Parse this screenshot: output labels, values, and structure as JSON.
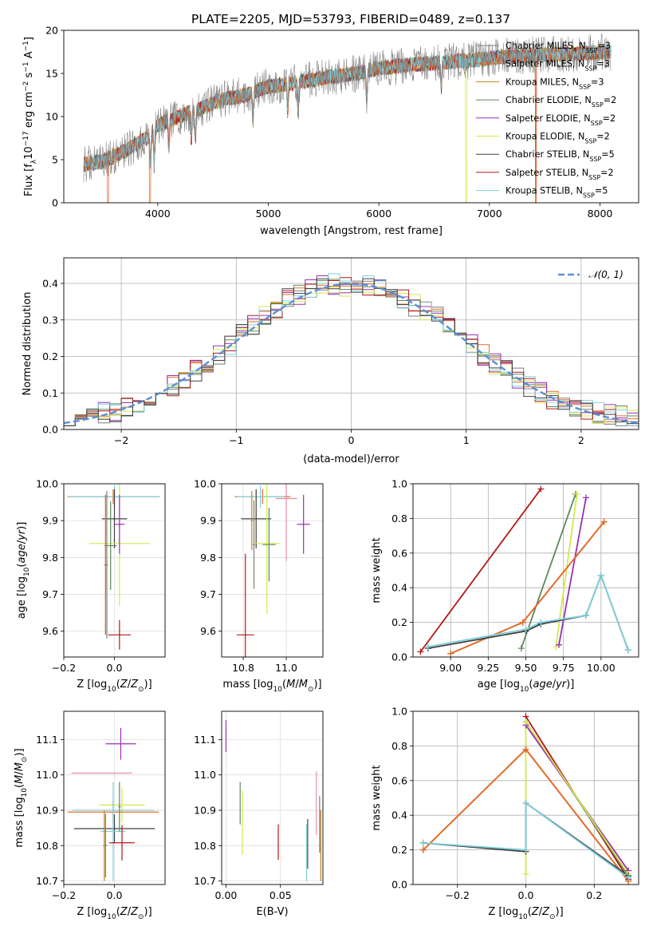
{
  "figure_title": "PLATE=2205, MJD=53793, FIBERID=0489, z=0.137",
  "colors": {
    "Chabrier MILES": "#7f7f7f",
    "Salpeter MILES": "#e86c2a",
    "Kroupa MILES": "#c08020",
    "Chabrier ELODIE": "#5a8a5a",
    "Salpeter ELODIE": "#9a2fb5",
    "Kroupa ELODIE": "#d4e84a",
    "Chabrier STELIB": "#404040",
    "Salpeter STELIB": "#b01818",
    "Kroupa STELIB": "#7fd0dc",
    "pink": "#e58fa8",
    "normal": "#5b8fd6",
    "grid": "#b0b0b0"
  },
  "chart_data": [
    {
      "id": "spectrum",
      "type": "line",
      "title": "PLATE=2205, MJD=53793, FIBERID=0489, z=0.137",
      "xlabel": "wavelength [Angstrom, rest frame]",
      "ylabel": "Flux [f_λ 10^-17 erg cm^-2 s^-1 A^-1]",
      "xlim": [
        3150,
        8350
      ],
      "ylim": [
        0,
        20
      ],
      "xticks": [
        "4000",
        "5000",
        "6000",
        "7000",
        "8000"
      ],
      "yticks": [
        "0",
        "5",
        "10",
        "15",
        "20"
      ],
      "grid": false,
      "legend_position": "right",
      "legend": [
        {
          "name": "Chabrier MILES",
          "label": "Chabrier MILES, N",
          "sub": "SSP",
          "tail": "=3"
        },
        {
          "name": "Salpeter MILES",
          "label": "Salpeter MILES, N",
          "sub": "SSP",
          "tail": "=3"
        },
        {
          "name": "Kroupa MILES",
          "label": "Kroupa MILES, N",
          "sub": "SSP",
          "tail": "=3"
        },
        {
          "name": "Chabrier ELODIE",
          "label": "Chabrier ELODIE, N",
          "sub": "SSP",
          "tail": "=2"
        },
        {
          "name": "Salpeter ELODIE",
          "label": "Salpeter ELODIE, N",
          "sub": "SSP",
          "tail": "=2"
        },
        {
          "name": "Kroupa ELODIE",
          "label": "Kroupa ELODIE, N",
          "sub": "SSP",
          "tail": "=2"
        },
        {
          "name": "Chabrier STELIB",
          "label": "Chabrier STELIB, N",
          "sub": "SSP",
          "tail": "=5"
        },
        {
          "name": "Salpeter STELIB",
          "label": "Salpeter STELIB, N",
          "sub": "SSP",
          "tail": "=2"
        },
        {
          "name": "Kroupa STELIB",
          "label": "Kroupa STELIB, N",
          "sub": "SSP",
          "tail": "=5"
        }
      ],
      "continuum": {
        "x": [
          3330,
          3500,
          3700,
          3900,
          4000,
          4200,
          4400,
          4600,
          4800,
          5000,
          5200,
          5500,
          5800,
          6000,
          6300,
          6600,
          6900,
          7200,
          7500,
          7800,
          8100
        ],
        "y": [
          4.5,
          4.8,
          6.0,
          7.5,
          9.0,
          10.0,
          11.0,
          12.0,
          12.5,
          13.5,
          13.8,
          14.5,
          15.0,
          15.6,
          16.0,
          16.3,
          16.6,
          17.0,
          17.2,
          17.3,
          17.5
        ]
      },
      "absorption_lines": [
        3934,
        3969,
        4101,
        4304,
        4340,
        4861,
        5175,
        5270,
        5890,
        6563
      ],
      "model_drops": [
        {
          "series": "Salpeter MILES",
          "x": [
            3550,
            3930,
            7420
          ]
        },
        {
          "series": "Kroupa ELODIE",
          "x": [
            6790
          ]
        },
        {
          "series": "Salpeter STELIB",
          "x": [
            7420
          ]
        }
      ]
    },
    {
      "id": "residuals",
      "type": "step",
      "xlabel": "(data-model)/error",
      "ylabel": "Normed distribution",
      "xlim": [
        -2.5,
        2.5
      ],
      "ylim": [
        0,
        0.47
      ],
      "xticks": [
        "−2",
        "−1",
        "0",
        "1",
        "2"
      ],
      "yticks": [
        "0.0",
        "0.1",
        "0.2",
        "0.3",
        "0.4"
      ],
      "grid": true,
      "legend_position": "top-right",
      "legend": "𝒩(0, 1)",
      "bin_width": 0.1,
      "base": [
        0.03,
        0.035,
        0.04,
        0.045,
        0.05,
        0.06,
        0.07,
        0.085,
        0.1,
        0.12,
        0.14,
        0.16,
        0.18,
        0.205,
        0.23,
        0.26,
        0.29,
        0.31,
        0.335,
        0.36,
        0.37,
        0.385,
        0.395,
        0.4,
        0.39,
        0.4,
        0.395,
        0.39,
        0.38,
        0.36,
        0.34,
        0.33,
        0.305,
        0.28,
        0.255,
        0.23,
        0.205,
        0.18,
        0.16,
        0.14,
        0.12,
        0.1,
        0.085,
        0.07,
        0.06,
        0.05,
        0.045,
        0.04,
        0.035,
        0.03
      ]
    },
    {
      "id": "age-vs-Z",
      "type": "errorbar",
      "xlabel": "Z [log10(Z/Z⊙)]",
      "ylabel": "age [log10(age/yr)]",
      "xlim": [
        -0.2,
        0.2
      ],
      "ylim": [
        9.53,
        10.0
      ],
      "xticks": [
        "−0.2",
        "0.0"
      ],
      "yticks": [
        "9.6",
        "9.7",
        "9.8",
        "9.9",
        "10.0"
      ],
      "points": [
        {
          "c": "Salpeter MILES",
          "x": -0.005,
          "y": 9.965,
          "xe": 0.18,
          "ye": 0.02
        },
        {
          "c": "Kroupa STELIB",
          "x": 0.0,
          "y": 9.965,
          "xe": 0.18,
          "ye": 0.03
        },
        {
          "c": "Chabrier STELIB",
          "x": 0.0,
          "y": 9.905,
          "xe": 0.05,
          "ye": 0.08
        },
        {
          "c": "Kroupa ELODIE",
          "x": 0.02,
          "y": 9.838,
          "xe": 0.12,
          "ye": 0.17
        },
        {
          "c": "Chabrier ELODIE",
          "x": -0.015,
          "y": 9.832,
          "xe": 0.025,
          "ye": 0.12
        },
        {
          "c": "Salpeter ELODIE",
          "x": 0.02,
          "y": 9.89,
          "xe": 0.02,
          "ye": 0.08
        },
        {
          "c": "Salpeter STELIB",
          "x": 0.02,
          "y": 9.59,
          "xe": 0.045,
          "ye": 0.04
        },
        {
          "c": "Chabrier MILES",
          "x": -0.03,
          "y": 9.78,
          "xe": 0.005,
          "ye": 0.2
        },
        {
          "c": "Kroupa MILES",
          "x": -0.035,
          "y": 9.78,
          "xe": 0.005,
          "ye": 0.19
        },
        {
          "c": "Salpeter MILES",
          "x": -0.035,
          "y": 9.78,
          "xe": 0.005,
          "ye": 0.19
        }
      ]
    },
    {
      "id": "age-vs-mass",
      "type": "errorbar",
      "xlabel": "mass [log10(M/M⊙)]",
      "ylabel": "",
      "xlim": [
        10.7,
        11.17
      ],
      "ylim": [
        9.53,
        10.0
      ],
      "xticks": [
        "10.8",
        "11.0"
      ],
      "yticks": [
        "9.6",
        "9.7",
        "9.8",
        "9.9",
        "10.0"
      ],
      "points": [
        {
          "c": "Salpeter MILES",
          "x": 10.89,
          "y": 9.965,
          "xe": 0.13,
          "ye": 0.02
        },
        {
          "c": "Kroupa STELIB",
          "x": 10.88,
          "y": 9.965,
          "xe": 0.11,
          "ye": 0.03
        },
        {
          "c": "pink",
          "x": 11.0,
          "y": 9.96,
          "xe": 0.05,
          "ye": 0.17
        },
        {
          "c": "Chabrier STELIB",
          "x": 10.86,
          "y": 9.905,
          "xe": 0.07,
          "ye": 0.08
        },
        {
          "c": "Kroupa ELODIE",
          "x": 10.91,
          "y": 9.838,
          "xe": 0.06,
          "ye": 0.19
        },
        {
          "c": "Chabrier ELODIE",
          "x": 10.92,
          "y": 9.835,
          "xe": 0.03,
          "ye": 0.1
        },
        {
          "c": "Salpeter ELODIE",
          "x": 11.08,
          "y": 9.89,
          "xe": 0.03,
          "ye": 0.08
        },
        {
          "c": "Salpeter STELIB",
          "x": 10.81,
          "y": 9.59,
          "xe": 0.04,
          "ye": 0.22
        },
        {
          "c": "Chabrier MILES",
          "x": 10.85,
          "y": 9.835,
          "xe": 0.005,
          "ye": 0.12
        },
        {
          "c": "Kroupa MILES",
          "x": 10.84,
          "y": 9.9,
          "xe": 0.005,
          "ye": 0.08
        }
      ]
    },
    {
      "id": "massweight-vs-age",
      "type": "line",
      "xlabel": "age [log10(age/yr)]",
      "ylabel": "mass weight",
      "xlim": [
        8.75,
        10.25
      ],
      "ylim": [
        0,
        1
      ],
      "xticks": [
        "9.00",
        "9.25",
        "9.50",
        "9.75",
        "10.00"
      ],
      "yticks": [
        "0.0",
        "0.2",
        "0.4",
        "0.6",
        "0.8",
        "1.0"
      ],
      "grid": true,
      "series": [
        {
          "c": "Salpeter STELIB",
          "x": [
            8.8,
            9.6
          ],
          "y": [
            0.03,
            0.97
          ]
        },
        {
          "c": "Chabrier ELODIE",
          "x": [
            9.47,
            9.83
          ],
          "y": [
            0.05,
            0.94
          ]
        },
        {
          "c": "Kroupa ELODIE",
          "x": [
            9.7,
            9.84
          ],
          "y": [
            0.06,
            0.94
          ]
        },
        {
          "c": "Salpeter ELODIE",
          "x": [
            9.72,
            9.9
          ],
          "y": [
            0.07,
            0.92
          ]
        },
        {
          "c": "Chabrier MILES",
          "x": [
            9.0,
            9.48,
            10.02
          ],
          "y": [
            0.02,
            0.2,
            0.78
          ]
        },
        {
          "c": "Kroupa MILES",
          "x": [
            9.0,
            9.48,
            10.02
          ],
          "y": [
            0.02,
            0.2,
            0.78
          ]
        },
        {
          "c": "Salpeter MILES",
          "x": [
            9.0,
            9.48,
            10.02
          ],
          "y": [
            0.02,
            0.2,
            0.78
          ]
        },
        {
          "c": "Chabrier STELIB",
          "x": [
            8.85,
            9.5,
            9.6,
            9.9,
            10.0,
            10.18
          ],
          "y": [
            0.05,
            0.15,
            0.19,
            0.24,
            0.47,
            0.04
          ]
        },
        {
          "c": "Kroupa STELIB",
          "x": [
            8.85,
            9.5,
            9.6,
            9.9,
            10.0,
            10.18
          ],
          "y": [
            0.06,
            0.16,
            0.2,
            0.24,
            0.47,
            0.04
          ]
        }
      ]
    },
    {
      "id": "mass-vs-Z",
      "type": "errorbar",
      "xlabel": "Z [log10(Z/Z⊙)]",
      "ylabel": "mass [log10(M/M⊙)]",
      "xlim": [
        -0.2,
        0.2
      ],
      "ylim": [
        10.69,
        11.18
      ],
      "xticks": [
        "−0.2",
        "0.0"
      ],
      "yticks": [
        "10.7",
        "10.8",
        "10.9",
        "11.0",
        "11.1"
      ],
      "points": [
        {
          "c": "Salpeter ELODIE",
          "x": 0.025,
          "y": 11.088,
          "xe": 0.06,
          "ye": 0.045
        },
        {
          "c": "pink",
          "x": -0.05,
          "y": 11.005,
          "xe": 0.12,
          "ye": 0.0
        },
        {
          "c": "Kroupa ELODIE",
          "x": 0.03,
          "y": 10.915,
          "xe": 0.09,
          "ye": 0.05
        },
        {
          "c": "Salpeter MILES",
          "x": -0.005,
          "y": 10.895,
          "xe": 0.18,
          "ye": 0.03
        },
        {
          "c": "Kroupa STELIB",
          "x": -0.005,
          "y": 10.9,
          "xe": 0.16,
          "ye": 0.035
        },
        {
          "c": "Chabrier STELIB",
          "x": 0.0,
          "y": 10.848,
          "xe": 0.16,
          "ye": 0.04
        },
        {
          "c": "Kroupa STELIB",
          "x": -0.005,
          "y": 10.84,
          "xe": 0.05,
          "ye": 0.14
        },
        {
          "c": "Salpeter STELIB",
          "x": 0.03,
          "y": 10.808,
          "xe": 0.05,
          "ye": 0.05
        },
        {
          "c": "Chabrier ELODIE",
          "x": 0.02,
          "y": 10.91,
          "xe": 0.005,
          "ye": 0.07
        },
        {
          "c": "Kroupa MILES",
          "x": -0.04,
          "y": 10.8,
          "xe": 0.005,
          "ye": 0.1
        },
        {
          "c": "Chabrier MILES",
          "x": -0.035,
          "y": 10.8,
          "xe": 0.005,
          "ye": 0.09
        }
      ]
    },
    {
      "id": "mass-vs-EBV",
      "type": "errorbar",
      "xlabel": "E(B-V)",
      "ylabel": "",
      "xlim": [
        -0.004,
        0.089
      ],
      "ylim": [
        10.69,
        11.18
      ],
      "xticks": [
        "0.00",
        "0.05"
      ],
      "yticks": [
        "10.7",
        "10.8",
        "10.9",
        "11.0",
        "11.1"
      ],
      "points": [
        {
          "c": "Salpeter ELODIE",
          "x": 0.0,
          "y": 11.11,
          "xe": 0,
          "ye": 0.045
        },
        {
          "c": "Chabrier ELODIE",
          "x": 0.013,
          "y": 10.92,
          "xe": 0,
          "ye": 0.06
        },
        {
          "c": "Kroupa ELODIE",
          "x": 0.015,
          "y": 10.865,
          "xe": 0,
          "ye": 0.09
        },
        {
          "c": "Salpeter STELIB",
          "x": 0.048,
          "y": 10.81,
          "xe": 0,
          "ye": 0.05
        },
        {
          "c": "Chabrier STELIB",
          "x": 0.075,
          "y": 10.805,
          "xe": 0,
          "ye": 0.07
        },
        {
          "c": "Kroupa STELIB",
          "x": 0.074,
          "y": 10.78,
          "xe": 0,
          "ye": 0.08
        },
        {
          "c": "pink",
          "x": 0.083,
          "y": 10.92,
          "xe": 0,
          "ye": 0.09
        },
        {
          "c": "Chabrier MILES",
          "x": 0.086,
          "y": 10.86,
          "xe": 0,
          "ye": 0.08
        },
        {
          "c": "Kroupa MILES",
          "x": 0.087,
          "y": 10.8,
          "xe": 0,
          "ye": 0.1
        }
      ]
    },
    {
      "id": "massweight-vs-Z",
      "type": "line",
      "xlabel": "Z [log10(Z/Z⊙)]",
      "ylabel": "mass weight",
      "xlim": [
        -0.33,
        0.33
      ],
      "ylim": [
        0,
        1
      ],
      "xticks": [
        "−0.2",
        "0.0",
        "0.2"
      ],
      "yticks": [
        "0.0",
        "0.2",
        "0.4",
        "0.6",
        "0.8",
        "1.0"
      ],
      "grid": true,
      "series": [
        {
          "c": "Salpeter STELIB",
          "x": [
            0.0,
            0.3
          ],
          "y": [
            0.97,
            0.03
          ]
        },
        {
          "c": "Chabrier ELODIE",
          "x": [
            0.0,
            0.3
          ],
          "y": [
            0.94,
            0.05
          ]
        },
        {
          "c": "Salpeter ELODIE",
          "x": [
            0.0,
            0.3
          ],
          "y": [
            0.92,
            0.08
          ]
        },
        {
          "c": "Kroupa ELODIE",
          "x": [
            0.0,
            0.3
          ],
          "y": [
            0.94,
            0.06
          ]
        },
        {
          "c": "Kroupa ELODIE",
          "x": [
            0.0,
            0.0
          ],
          "y": [
            0.06,
            0.94
          ]
        },
        {
          "c": "Chabrier MILES",
          "x": [
            -0.3,
            0.0,
            0.3
          ],
          "y": [
            0.2,
            0.78,
            0.02
          ]
        },
        {
          "c": "Kroupa MILES",
          "x": [
            -0.3,
            0.0,
            0.3
          ],
          "y": [
            0.2,
            0.78,
            0.02
          ]
        },
        {
          "c": "Salpeter MILES",
          "x": [
            -0.3,
            0.0,
            0.3
          ],
          "y": [
            0.2,
            0.78,
            0.02
          ]
        },
        {
          "c": "Chabrier STELIB",
          "x": [
            -0.3,
            0.0,
            0.0,
            0.3
          ],
          "y": [
            0.24,
            0.19,
            0.47,
            0.05
          ]
        },
        {
          "c": "Kroupa STELIB",
          "x": [
            -0.3,
            0.0,
            0.0,
            0.3
          ],
          "y": [
            0.24,
            0.2,
            0.47,
            0.04
          ]
        }
      ]
    }
  ]
}
